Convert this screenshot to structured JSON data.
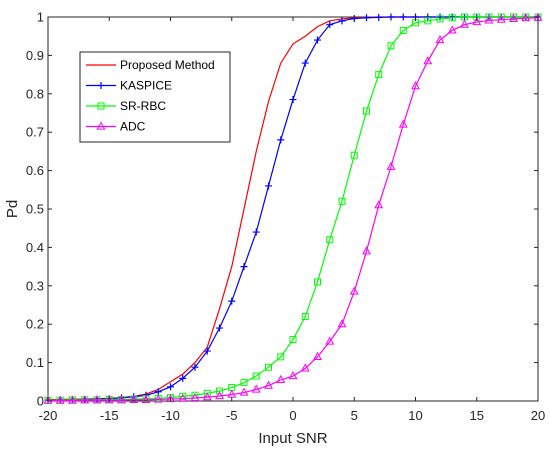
{
  "chart_data": {
    "type": "line",
    "title": "",
    "xlabel": "Input SNR",
    "ylabel": "Pd",
    "xlim": [
      -20,
      20
    ],
    "ylim": [
      0,
      1
    ],
    "xticks": [
      -20,
      -15,
      -10,
      -5,
      0,
      5,
      10,
      15,
      20
    ],
    "yticks": [
      0,
      0.1,
      0.2,
      0.3,
      0.4,
      0.5,
      0.6,
      0.7,
      0.8,
      0.9,
      1
    ],
    "grid": false,
    "legend_position": "top-left",
    "series": [
      {
        "name": "Proposed Method",
        "color": "#ff0000",
        "marker": "none",
        "x": [
          -20,
          -19,
          -18,
          -17,
          -16,
          -15,
          -14,
          -13,
          -12,
          -11,
          -10,
          -9,
          -8,
          -7,
          -6,
          -5,
          -4,
          -3,
          -2,
          -1,
          0,
          1,
          2,
          3,
          4,
          5,
          6,
          7,
          8,
          9,
          10,
          11,
          12,
          13,
          14,
          15,
          16,
          17,
          18,
          19,
          20
        ],
        "y": [
          0.004,
          0.004,
          0.005,
          0.005,
          0.006,
          0.007,
          0.009,
          0.012,
          0.018,
          0.03,
          0.05,
          0.07,
          0.1,
          0.14,
          0.24,
          0.35,
          0.5,
          0.65,
          0.78,
          0.88,
          0.93,
          0.95,
          0.975,
          0.99,
          0.995,
          0.998,
          0.999,
          1,
          1,
          1,
          1,
          1,
          1,
          1,
          1,
          1,
          1,
          1,
          1,
          1,
          1
        ]
      },
      {
        "name": "KASPICE",
        "color": "#0000ff",
        "marker": "plus",
        "x": [
          -20,
          -19,
          -18,
          -17,
          -16,
          -15,
          -14,
          -13,
          -12,
          -11,
          -10,
          -9,
          -8,
          -7,
          -6,
          -5,
          -4,
          -3,
          -2,
          -1,
          0,
          1,
          2,
          3,
          4,
          5,
          6,
          7,
          8,
          9,
          10,
          11,
          12,
          13,
          14,
          15,
          16,
          17,
          18,
          19,
          20
        ],
        "y": [
          0.002,
          0.003,
          0.003,
          0.004,
          0.005,
          0.006,
          0.008,
          0.011,
          0.015,
          0.024,
          0.037,
          0.059,
          0.088,
          0.13,
          0.19,
          0.26,
          0.35,
          0.44,
          0.56,
          0.68,
          0.785,
          0.88,
          0.94,
          0.98,
          0.99,
          0.996,
          0.998,
          0.999,
          1,
          1,
          1,
          1,
          1,
          1,
          1,
          1,
          1,
          1,
          1,
          1,
          1
        ]
      },
      {
        "name": "SR-RBC",
        "color": "#00ff00",
        "marker": "square",
        "x": [
          -20,
          -19,
          -18,
          -17,
          -16,
          -15,
          -14,
          -13,
          -12,
          -11,
          -10,
          -9,
          -8,
          -7,
          -6,
          -5,
          -4,
          -3,
          -2,
          -1,
          0,
          1,
          2,
          3,
          4,
          5,
          6,
          7,
          8,
          9,
          10,
          11,
          12,
          13,
          14,
          15,
          16,
          17,
          18,
          19,
          20
        ],
        "y": [
          0.002,
          0.002,
          0.003,
          0.003,
          0.003,
          0.004,
          0.004,
          0.005,
          0.006,
          0.007,
          0.009,
          0.012,
          0.015,
          0.02,
          0.026,
          0.035,
          0.048,
          0.065,
          0.088,
          0.115,
          0.16,
          0.22,
          0.31,
          0.42,
          0.52,
          0.64,
          0.755,
          0.85,
          0.925,
          0.965,
          0.985,
          0.99,
          0.995,
          0.998,
          1,
          1,
          1,
          1,
          1,
          1,
          1
        ]
      },
      {
        "name": "ADC",
        "color": "#ff00ff",
        "marker": "triangle",
        "x": [
          -20,
          -19,
          -18,
          -17,
          -16,
          -15,
          -14,
          -13,
          -12,
          -11,
          -10,
          -9,
          -8,
          -7,
          -6,
          -5,
          -4,
          -3,
          -2,
          -1,
          0,
          1,
          2,
          3,
          4,
          5,
          6,
          7,
          8,
          9,
          10,
          11,
          12,
          13,
          14,
          15,
          16,
          17,
          18,
          19,
          20
        ],
        "y": [
          0.001,
          0.001,
          0.001,
          0.002,
          0.002,
          0.002,
          0.002,
          0.003,
          0.003,
          0.004,
          0.005,
          0.006,
          0.008,
          0.01,
          0.013,
          0.017,
          0.022,
          0.03,
          0.04,
          0.055,
          0.065,
          0.085,
          0.115,
          0.155,
          0.2,
          0.285,
          0.39,
          0.51,
          0.61,
          0.72,
          0.82,
          0.885,
          0.94,
          0.965,
          0.98,
          0.987,
          0.991,
          0.993,
          0.995,
          0.997,
          0.998
        ]
      }
    ]
  }
}
